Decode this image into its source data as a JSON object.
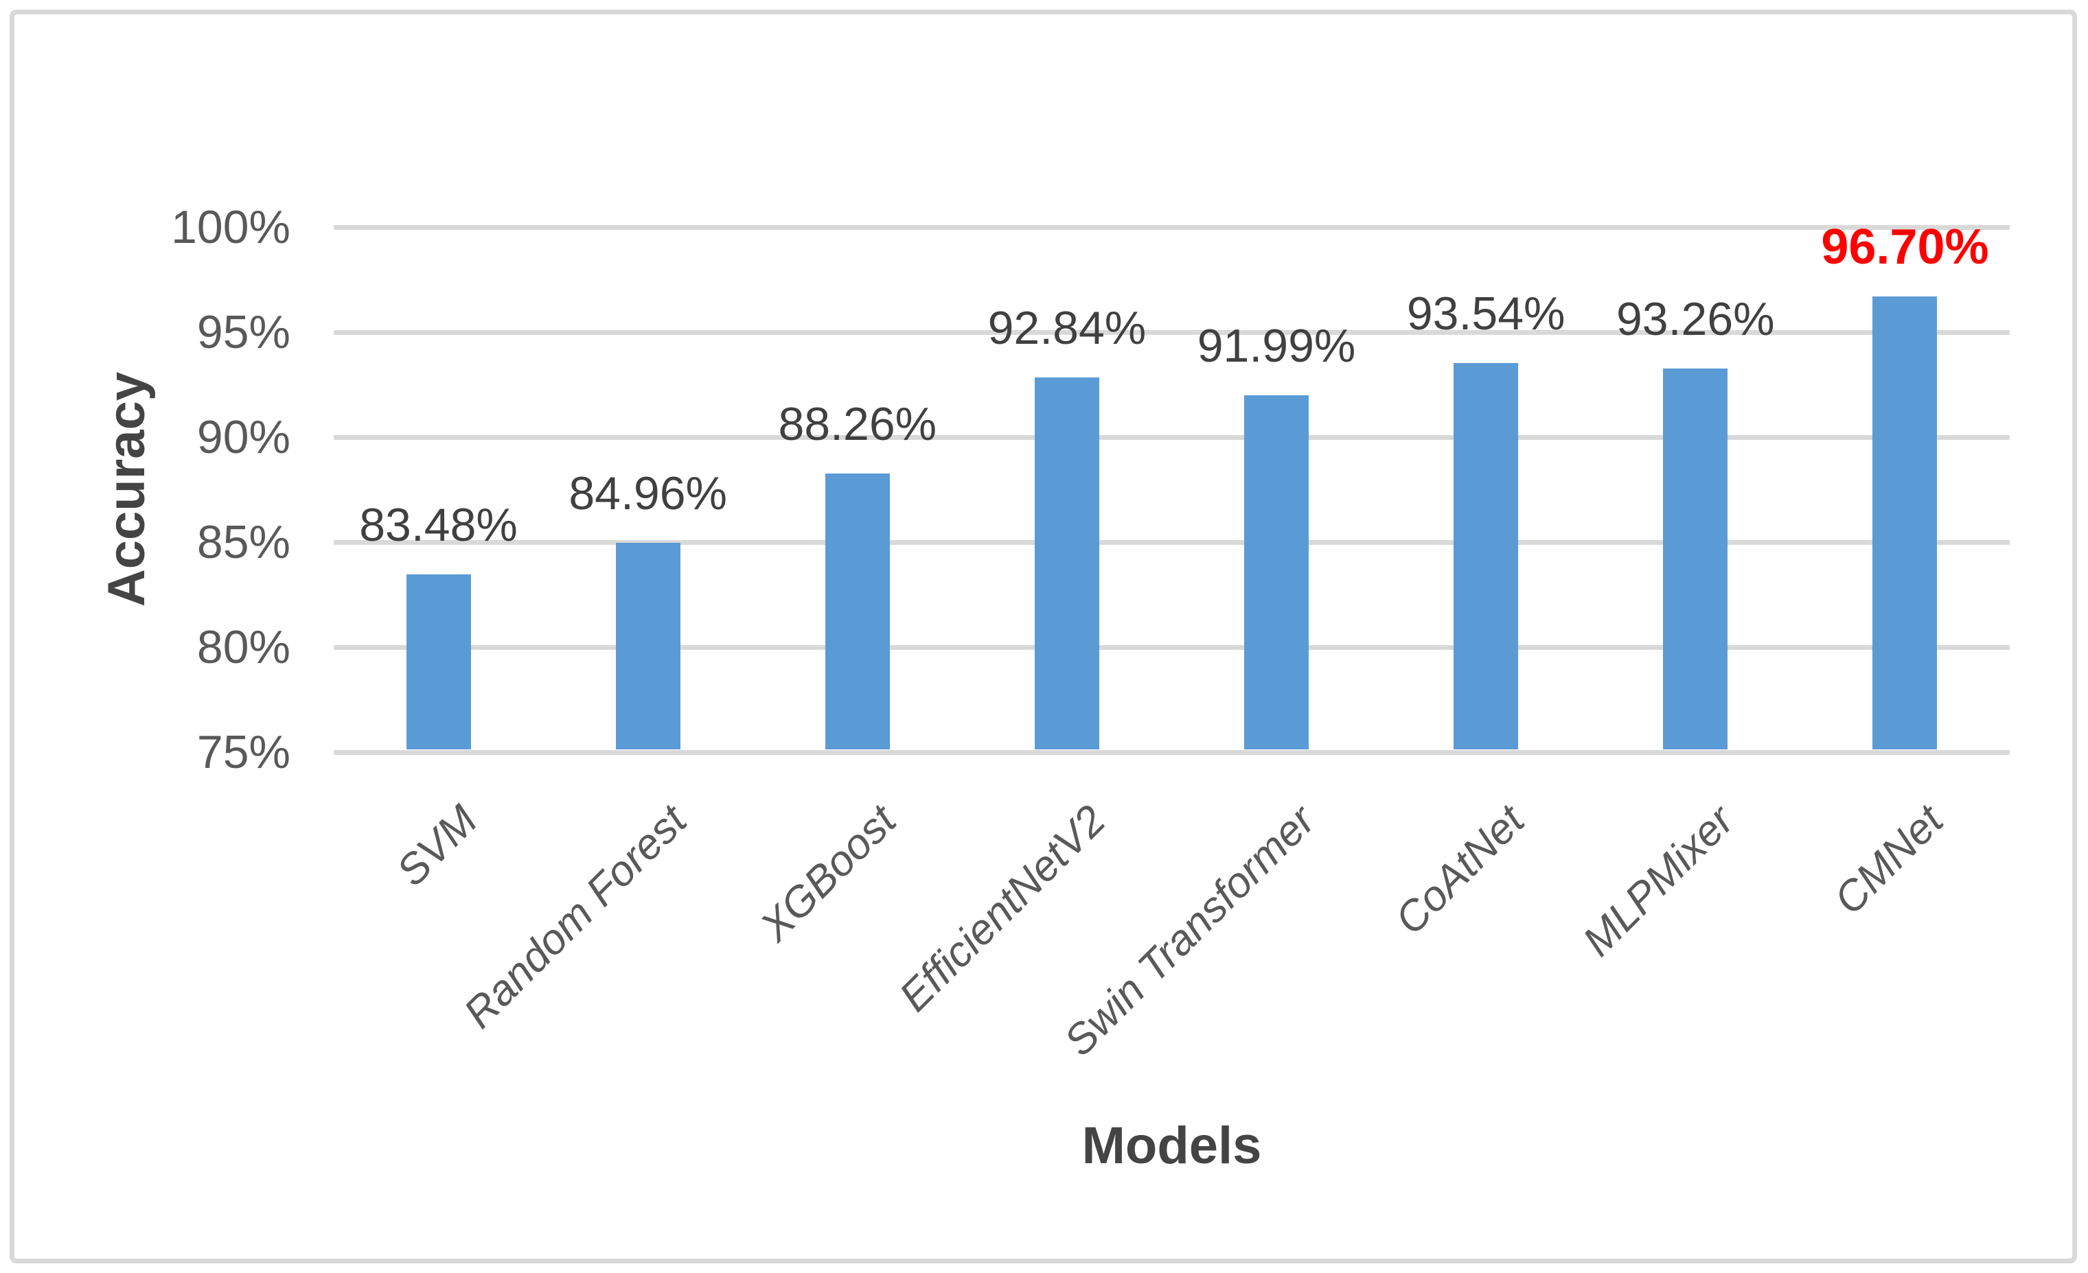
{
  "chart_data": {
    "type": "bar",
    "title": "",
    "xlabel": "Models",
    "ylabel": "Accuracy",
    "categories": [
      "SVM",
      "Random Forest",
      "XGBoost",
      "EfficientNetV2",
      "Swin Transformer",
      "CoAtNet",
      "MLPMixer",
      "CMNet"
    ],
    "series": [
      {
        "name": "Accuracy",
        "values": [
          83.48,
          84.96,
          88.26,
          92.84,
          91.99,
          93.54,
          93.26,
          96.7
        ]
      }
    ],
    "value_labels": [
      "83.48%",
      "84.96%",
      "88.26%",
      "92.84%",
      "91.99%",
      "93.54%",
      "93.26%",
      "96.70%"
    ],
    "highlight": {
      "index": 7,
      "label": "96.70%",
      "color": "#ff0000",
      "bold": true
    },
    "ylim": [
      75,
      100
    ],
    "ytick_step": 5,
    "yticks": [
      {
        "value": 75,
        "label": "75%"
      },
      {
        "value": 80,
        "label": "80%"
      },
      {
        "value": 85,
        "label": "85%"
      },
      {
        "value": 90,
        "label": "90%"
      },
      {
        "value": 95,
        "label": "95%"
      },
      {
        "value": 100,
        "label": "100%"
      }
    ],
    "grid": "horizontal",
    "legend_position": "none",
    "colors": {
      "bar": "#5b9bd5",
      "grid": "#d9d9d9",
      "tick_text": "#595959",
      "category_text": "#595959",
      "data_label_text": "#404040",
      "highlight_text": "#ff0000",
      "axis_title_text": "#444444",
      "frame_border": "#d9d9d9",
      "background": "#ffffff"
    }
  }
}
